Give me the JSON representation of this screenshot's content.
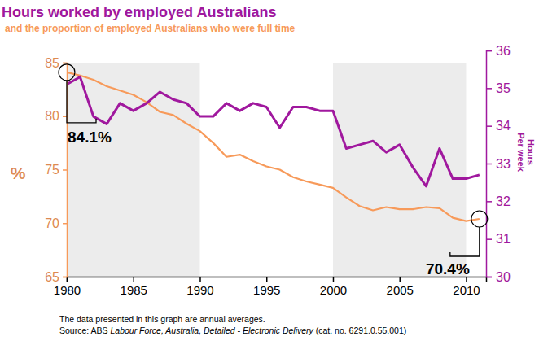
{
  "chart_data": {
    "type": "line",
    "title": "Hours worked by employed Australians",
    "subtitle": "and the proportion of employed Australians who were full time",
    "ylabel": "%",
    "y2label": [
      "Hours",
      "Per week"
    ],
    "x": [
      1980,
      1981,
      1982,
      1983,
      1984,
      1985,
      1986,
      1987,
      1988,
      1989,
      1990,
      1991,
      1992,
      1993,
      1994,
      1995,
      1996,
      1997,
      1998,
      1999,
      2000,
      2001,
      2002,
      2003,
      2004,
      2005,
      2006,
      2007,
      2008,
      2009,
      2010,
      2011
    ],
    "xlim": [
      1980,
      2011.5
    ],
    "xticks": [
      1980,
      1985,
      1990,
      1995,
      2000,
      2005,
      2010
    ],
    "ylim": [
      65,
      85
    ],
    "yticks": [
      65,
      70,
      75,
      80,
      85
    ],
    "y2lim": [
      30,
      36
    ],
    "y2ticks": [
      30,
      31,
      32,
      33,
      34,
      35,
      36
    ],
    "bands": [
      {
        "x0": 1980,
        "x1": 1990
      },
      {
        "x0": 2000,
        "x1": 2010
      }
    ],
    "series": [
      {
        "color": "#f79a5a",
        "axis": "y",
        "values": [
          84.1,
          83.8,
          83.4,
          82.8,
          82.4,
          82.0,
          81.3,
          80.4,
          80.1,
          79.3,
          78.6,
          77.5,
          76.2,
          76.4,
          75.8,
          75.3,
          75.0,
          74.3,
          73.9,
          73.6,
          73.3,
          72.4,
          71.6,
          71.2,
          71.5,
          71.3,
          71.3,
          71.5,
          71.4,
          70.5,
          70.2,
          70.4
        ]
      },
      {
        "color": "#a0189e",
        "axis": "y2",
        "values": [
          35.1,
          35.3,
          34.25,
          34.05,
          34.6,
          34.4,
          34.6,
          34.9,
          34.7,
          34.6,
          34.25,
          34.25,
          34.6,
          34.4,
          34.6,
          34.5,
          33.95,
          34.5,
          34.5,
          34.4,
          34.4,
          33.4,
          33.5,
          33.6,
          33.3,
          33.5,
          32.9,
          32.4,
          33.4,
          32.6,
          32.6,
          32.7
        ]
      }
    ],
    "annotations": [
      {
        "text": "84.1%",
        "x": 1980,
        "y": 84.1
      },
      {
        "text": "70.4%",
        "x": 2011,
        "y": 70.4
      }
    ],
    "notes": [
      "The data presented in this graph are annual averages."
    ],
    "source": [
      "Source: ABS ",
      "Labour Force, Australia, Detailed - Electronic Delivery",
      " (cat. no. 6291.0.55.001)"
    ]
  }
}
